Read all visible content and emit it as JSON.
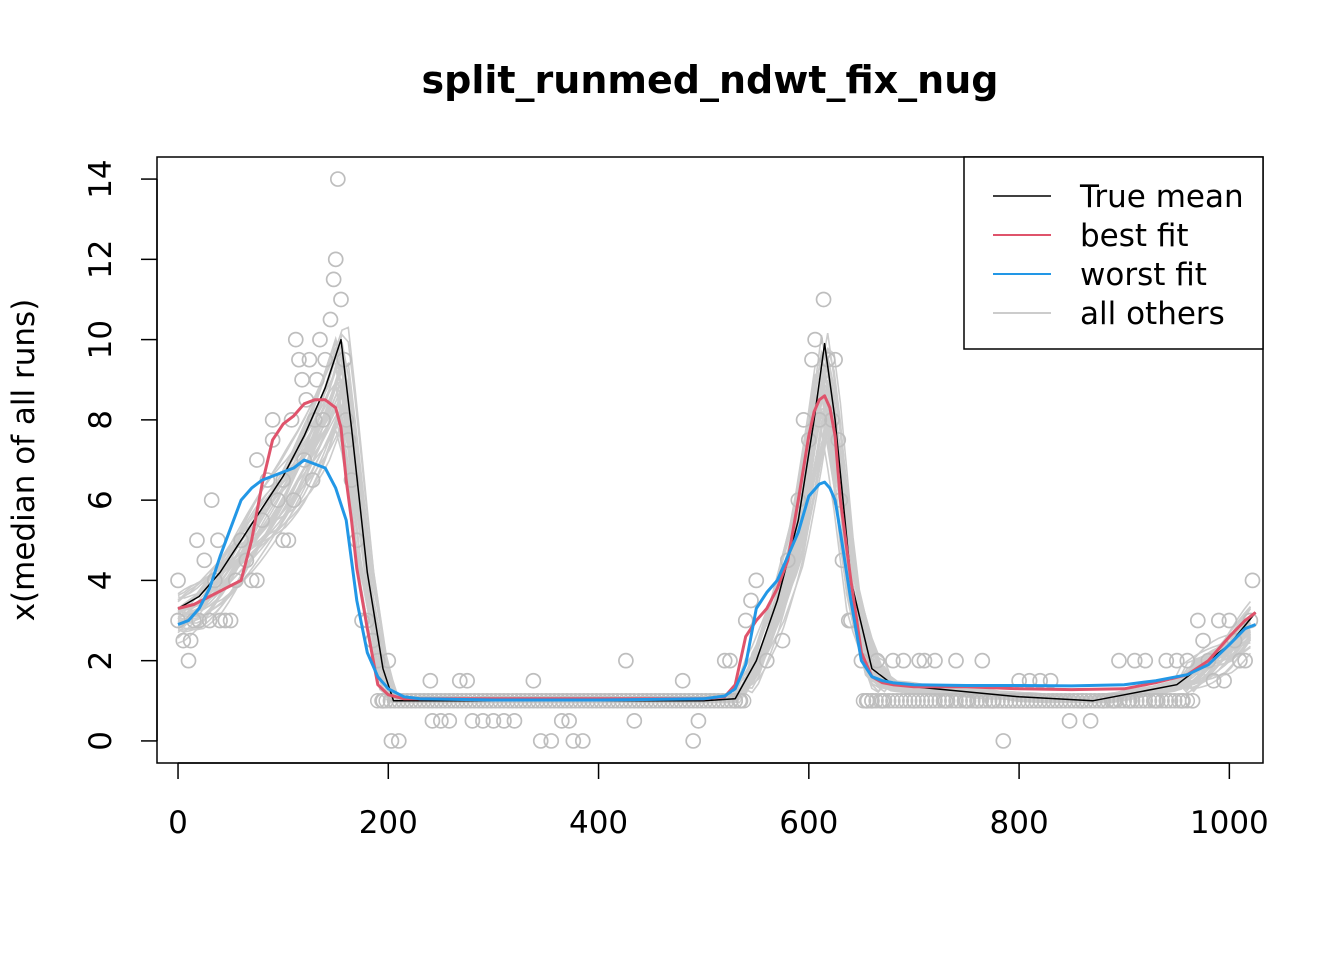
{
  "chart_data": {
    "type": "line",
    "title": "split_runmed_ndwt_fix_nug",
    "xlabel": "",
    "ylabel": "x(median of all runs)",
    "xlim": [
      -20,
      1032
    ],
    "ylim": [
      -0.55,
      14.55
    ],
    "xticks": [
      0,
      200,
      400,
      600,
      800,
      1000
    ],
    "yticks": [
      0,
      2,
      4,
      6,
      8,
      10,
      12,
      14
    ],
    "grid": false,
    "legend": {
      "position": "top-right",
      "entries": [
        {
          "label": "True mean",
          "color": "#000000"
        },
        {
          "label": "best fit",
          "color": "#DF536B"
        },
        {
          "label": "worst fit",
          "color": "#2297E6"
        },
        {
          "label": "all others",
          "color": "#CCCCCC"
        }
      ]
    },
    "series": [
      {
        "name": "True mean",
        "color": "#000000",
        "x": [
          0,
          20,
          40,
          60,
          80,
          100,
          120,
          140,
          155,
          165,
          180,
          195,
          205,
          230,
          300,
          400,
          500,
          530,
          550,
          570,
          590,
          605,
          615,
          625,
          640,
          660,
          680,
          700,
          800,
          870,
          900,
          950,
          1000,
          1025
        ],
        "y": [
          3.3,
          3.6,
          4.2,
          5.0,
          5.8,
          6.6,
          7.6,
          8.8,
          10.0,
          7.8,
          4.2,
          1.8,
          1.0,
          1.0,
          1.0,
          1.0,
          1.0,
          1.05,
          2.0,
          3.5,
          5.5,
          8.0,
          9.9,
          8.0,
          4.0,
          1.8,
          1.4,
          1.35,
          1.1,
          1.0,
          1.15,
          1.4,
          2.4,
          3.2
        ]
      },
      {
        "name": "best fit",
        "color": "#DF536B",
        "x": [
          0,
          15,
          30,
          45,
          60,
          70,
          80,
          90,
          100,
          110,
          120,
          130,
          140,
          150,
          155,
          160,
          165,
          170,
          180,
          190,
          200,
          215,
          230,
          300,
          400,
          500,
          520,
          530,
          540,
          550,
          560,
          570,
          580,
          590,
          600,
          605,
          610,
          615,
          620,
          625,
          630,
          640,
          650,
          660,
          670,
          680,
          700,
          750,
          800,
          850,
          900,
          930,
          960,
          980,
          1000,
          1015,
          1025
        ],
        "y": [
          3.3,
          3.4,
          3.6,
          3.8,
          4.0,
          5.0,
          6.4,
          7.5,
          7.9,
          8.1,
          8.4,
          8.5,
          8.5,
          8.3,
          7.8,
          6.5,
          5.5,
          4.3,
          2.8,
          1.4,
          1.15,
          1.05,
          1.05,
          1.05,
          1.05,
          1.05,
          1.1,
          1.4,
          2.6,
          3.0,
          3.3,
          3.8,
          4.5,
          6.0,
          7.6,
          8.2,
          8.5,
          8.6,
          8.3,
          7.6,
          6.0,
          4.0,
          2.2,
          1.6,
          1.45,
          1.4,
          1.35,
          1.35,
          1.3,
          1.28,
          1.3,
          1.45,
          1.65,
          2.0,
          2.6,
          3.0,
          3.2
        ]
      },
      {
        "name": "worst fit",
        "color": "#2297E6",
        "x": [
          0,
          10,
          20,
          30,
          40,
          50,
          60,
          70,
          80,
          90,
          100,
          110,
          120,
          130,
          140,
          150,
          160,
          165,
          170,
          180,
          190,
          200,
          215,
          230,
          300,
          400,
          500,
          520,
          530,
          540,
          550,
          560,
          570,
          580,
          590,
          600,
          610,
          615,
          620,
          625,
          630,
          640,
          650,
          660,
          670,
          680,
          700,
          750,
          800,
          850,
          900,
          930,
          960,
          980,
          1000,
          1015,
          1025
        ],
        "y": [
          2.9,
          3.0,
          3.3,
          3.8,
          4.6,
          5.3,
          6.0,
          6.3,
          6.5,
          6.6,
          6.7,
          6.8,
          7.0,
          6.9,
          6.8,
          6.3,
          5.5,
          4.5,
          3.5,
          2.2,
          1.6,
          1.3,
          1.1,
          1.05,
          1.02,
          1.02,
          1.05,
          1.12,
          1.3,
          1.9,
          3.3,
          3.7,
          4.0,
          4.6,
          5.2,
          6.1,
          6.4,
          6.45,
          6.3,
          6.0,
          5.2,
          3.5,
          2.0,
          1.6,
          1.5,
          1.45,
          1.4,
          1.38,
          1.38,
          1.37,
          1.4,
          1.5,
          1.65,
          1.9,
          2.4,
          2.8,
          2.9
        ]
      }
    ],
    "others_note_count": 40,
    "scatter_points": [
      [
        0,
        4.0
      ],
      [
        0,
        3.0
      ],
      [
        5,
        2.5
      ],
      [
        10,
        2.0
      ],
      [
        12,
        2.5
      ],
      [
        15,
        3.0
      ],
      [
        18,
        5.0
      ],
      [
        20,
        3.0
      ],
      [
        25,
        4.5
      ],
      [
        30,
        3.0
      ],
      [
        32,
        6.0
      ],
      [
        35,
        4.0
      ],
      [
        38,
        5.0
      ],
      [
        40,
        3.0
      ],
      [
        45,
        3.0
      ],
      [
        50,
        3.0
      ],
      [
        55,
        4.0
      ],
      [
        60,
        5.0
      ],
      [
        65,
        4.5
      ],
      [
        70,
        4.0
      ],
      [
        75,
        4.0
      ],
      [
        75,
        7.0
      ],
      [
        80,
        5.5
      ],
      [
        85,
        6.5
      ],
      [
        90,
        8.0
      ],
      [
        90,
        7.5
      ],
      [
        95,
        6.0
      ],
      [
        100,
        5.0
      ],
      [
        100,
        6.5
      ],
      [
        105,
        5.0
      ],
      [
        108,
        8.0
      ],
      [
        110,
        6.0
      ],
      [
        112,
        10.0
      ],
      [
        115,
        9.5
      ],
      [
        118,
        9.0
      ],
      [
        120,
        7.0
      ],
      [
        122,
        8.5
      ],
      [
        125,
        9.5
      ],
      [
        128,
        6.5
      ],
      [
        130,
        8.0
      ],
      [
        132,
        9.0
      ],
      [
        135,
        10.0
      ],
      [
        138,
        8.0
      ],
      [
        140,
        9.5
      ],
      [
        145,
        10.5
      ],
      [
        148,
        11.5
      ],
      [
        150,
        12.0
      ],
      [
        152,
        14.0
      ],
      [
        155,
        11.0
      ],
      [
        158,
        9.5
      ],
      [
        160,
        8.0
      ],
      [
        162,
        7.5
      ],
      [
        165,
        6.5
      ],
      [
        170,
        5.0
      ],
      [
        175,
        3.0
      ],
      [
        180,
        3.0
      ],
      [
        185,
        2.5
      ],
      [
        190,
        2.0
      ],
      [
        195,
        1.0
      ],
      [
        200,
        2.0
      ],
      [
        203,
        0.0
      ],
      [
        210,
        0.0
      ],
      [
        240,
        1.5
      ],
      [
        242,
        0.5
      ],
      [
        250,
        0.5
      ],
      [
        258,
        0.5
      ],
      [
        268,
        1.5
      ],
      [
        275,
        1.5
      ],
      [
        280,
        0.5
      ],
      [
        290,
        0.5
      ],
      [
        300,
        0.5
      ],
      [
        310,
        0.5
      ],
      [
        320,
        0.5
      ],
      [
        338,
        1.5
      ],
      [
        345,
        0.0
      ],
      [
        355,
        0.0
      ],
      [
        365,
        0.5
      ],
      [
        372,
        0.5
      ],
      [
        376,
        0.0
      ],
      [
        385,
        0.0
      ],
      [
        426,
        2.0
      ],
      [
        434,
        0.5
      ],
      [
        480,
        1.5
      ],
      [
        490,
        0.0
      ],
      [
        495,
        0.5
      ],
      [
        520,
        2.0
      ],
      [
        525,
        2.0
      ],
      [
        530,
        1.0
      ],
      [
        535,
        1.0
      ],
      [
        540,
        3.0
      ],
      [
        545,
        3.5
      ],
      [
        550,
        4.0
      ],
      [
        560,
        2.0
      ],
      [
        575,
        2.5
      ],
      [
        580,
        4.5
      ],
      [
        590,
        6.0
      ],
      [
        595,
        8.0
      ],
      [
        600,
        7.5
      ],
      [
        603,
        9.5
      ],
      [
        606,
        10.0
      ],
      [
        610,
        8.0
      ],
      [
        614,
        11.0
      ],
      [
        618,
        9.5
      ],
      [
        622,
        8.0
      ],
      [
        625,
        9.5
      ],
      [
        628,
        7.5
      ],
      [
        630,
        6.0
      ],
      [
        632,
        4.5
      ],
      [
        638,
        3.0
      ],
      [
        640,
        3.0
      ],
      [
        650,
        2.0
      ],
      [
        655,
        1.0
      ],
      [
        660,
        1.0
      ],
      [
        665,
        2.0
      ],
      [
        670,
        1.0
      ],
      [
        680,
        2.0
      ],
      [
        690,
        2.0
      ],
      [
        700,
        1.0
      ],
      [
        705,
        2.0
      ],
      [
        710,
        2.0
      ],
      [
        720,
        2.0
      ],
      [
        730,
        1.0
      ],
      [
        740,
        2.0
      ],
      [
        750,
        1.0
      ],
      [
        760,
        1.0
      ],
      [
        765,
        2.0
      ],
      [
        775,
        1.0
      ],
      [
        785,
        0.0
      ],
      [
        800,
        1.5
      ],
      [
        810,
        1.5
      ],
      [
        820,
        1.5
      ],
      [
        830,
        1.5
      ],
      [
        848,
        0.5
      ],
      [
        860,
        1.0
      ],
      [
        868,
        0.5
      ],
      [
        880,
        1.0
      ],
      [
        890,
        1.0
      ],
      [
        895,
        2.0
      ],
      [
        905,
        1.0
      ],
      [
        910,
        2.0
      ],
      [
        920,
        2.0
      ],
      [
        930,
        1.0
      ],
      [
        940,
        2.0
      ],
      [
        950,
        2.0
      ],
      [
        955,
        1.0
      ],
      [
        960,
        2.0
      ],
      [
        965,
        1.0
      ],
      [
        970,
        3.0
      ],
      [
        975,
        2.5
      ],
      [
        980,
        2.0
      ],
      [
        985,
        1.5
      ],
      [
        990,
        3.0
      ],
      [
        995,
        1.5
      ],
      [
        1000,
        3.0
      ],
      [
        1005,
        2.5
      ],
      [
        1010,
        2.0
      ],
      [
        1015,
        2.0
      ],
      [
        1020,
        3.0
      ],
      [
        1022,
        4.0
      ]
    ]
  }
}
